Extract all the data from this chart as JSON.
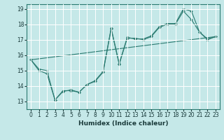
{
  "xlabel": "Humidex (Indice chaleur)",
  "bg_color": "#c5e8e8",
  "grid_color": "#ffffff",
  "line_color": "#2a7a70",
  "line1_x": [
    0,
    1,
    2,
    3,
    4,
    5,
    6,
    7,
    8,
    9,
    10,
    11,
    12,
    13,
    14,
    15,
    16,
    17,
    18,
    19,
    20,
    21,
    22,
    23
  ],
  "line1_y": [
    15.7,
    15.0,
    14.8,
    13.1,
    13.7,
    13.7,
    13.6,
    14.1,
    14.3,
    14.9,
    17.7,
    15.4,
    17.1,
    17.1,
    17.0,
    17.2,
    17.8,
    18.0,
    18.0,
    18.85,
    18.3,
    17.5,
    17.0,
    17.2
  ],
  "line2_x": [
    0,
    23
  ],
  "line2_y": [
    15.7,
    17.2
  ],
  "line3_x": [
    0,
    1,
    2,
    3,
    4,
    5,
    6,
    7,
    8,
    9,
    10,
    11,
    12,
    13,
    14,
    15,
    16,
    17,
    18,
    19,
    20,
    21,
    22,
    23
  ],
  "line3_y": [
    15.7,
    15.1,
    15.0,
    13.1,
    13.65,
    13.75,
    13.6,
    14.1,
    14.35,
    14.95,
    17.75,
    15.45,
    17.15,
    17.05,
    17.05,
    17.25,
    17.85,
    18.05,
    18.05,
    19.0,
    18.85,
    17.5,
    17.05,
    17.2
  ],
  "ylim": [
    12.5,
    19.3
  ],
  "xlim": [
    -0.5,
    23.5
  ],
  "xticks": [
    0,
    1,
    2,
    3,
    4,
    5,
    6,
    7,
    8,
    9,
    10,
    11,
    12,
    13,
    14,
    15,
    16,
    17,
    18,
    19,
    20,
    21,
    22,
    23
  ],
  "yticks": [
    13,
    14,
    15,
    16,
    17,
    18,
    19
  ],
  "label_fontsize": 6.5,
  "tick_fontsize": 5.5
}
